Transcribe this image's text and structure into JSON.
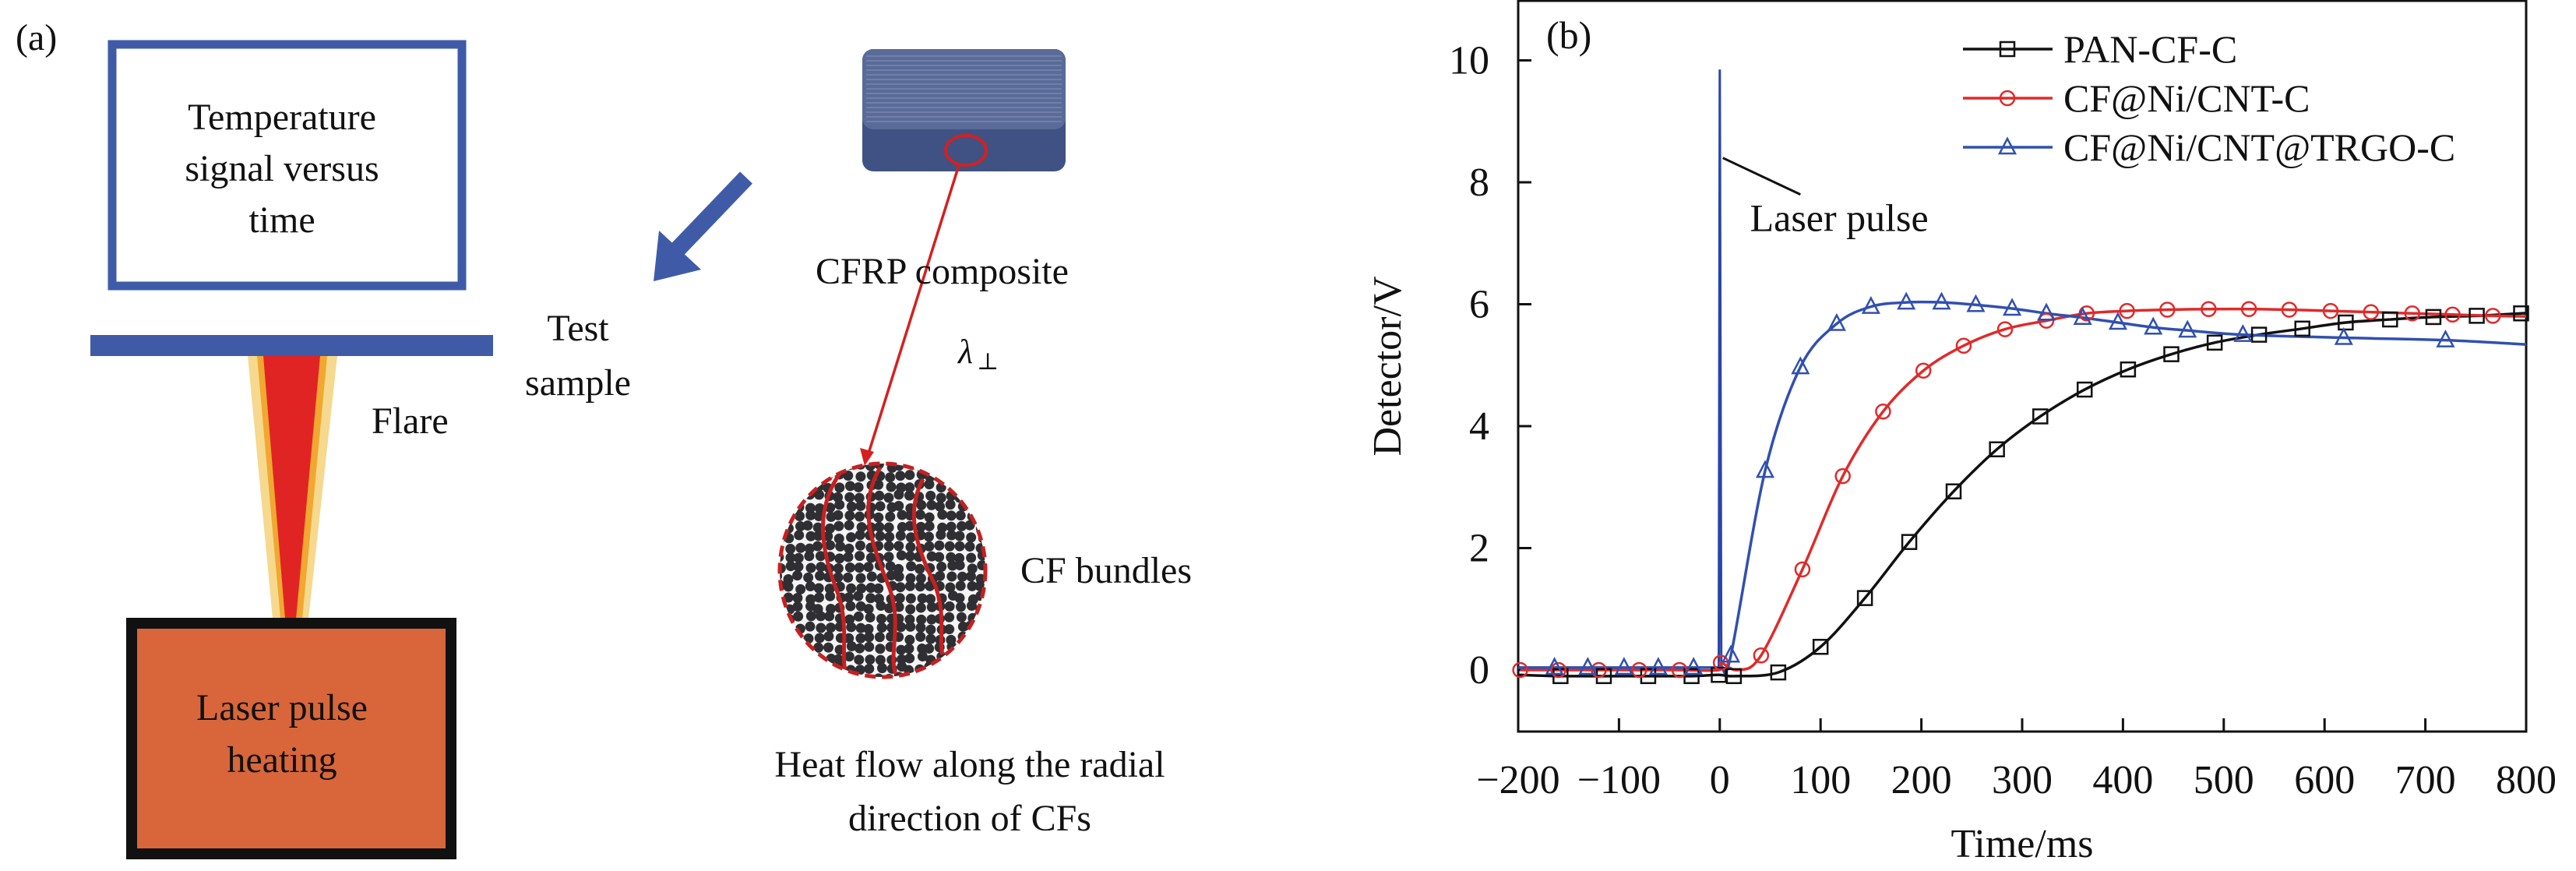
{
  "panel_a": {
    "label": "(a)",
    "monitor_text": [
      "Temperature",
      "signal versus",
      "time"
    ],
    "test_sample": [
      "Test",
      "sample"
    ],
    "flare": "Flare",
    "laser_text": [
      "Laser pulse",
      "heating"
    ],
    "cfrp": "CFRP composite",
    "lambda": "λ",
    "lambda_sub": "⊥",
    "cf_bundles": "CF bundles",
    "heat_flow": [
      "Heat flow along the radial",
      "direction of CFs"
    ],
    "colors": {
      "blue": "#3f5ba8",
      "laser": "#d8663a",
      "flare_red": "#e02424",
      "flare_yellow": "#f2c04a",
      "device": "#3f5283",
      "red": "#d42020"
    }
  },
  "chart_data": {
    "type": "line",
    "panel_label": "(b)",
    "xlabel": "Time/ms",
    "ylabel": "Detector/V",
    "xlim": [
      -200,
      800
    ],
    "ylim": [
      -1,
      11
    ],
    "xticks": [
      -200,
      -100,
      0,
      100,
      200,
      300,
      400,
      500,
      600,
      700,
      800
    ],
    "xtick_labels": [
      "−200",
      "−100",
      "0",
      "100",
      "200",
      "300",
      "400",
      "500",
      "600",
      "700",
      "800"
    ],
    "yticks": [
      0,
      2,
      4,
      6,
      8,
      10
    ],
    "ytick_labels": [
      "0",
      "2",
      "4",
      "6",
      "8",
      "10"
    ],
    "grid": false,
    "legend_position": "top-right",
    "annotation": {
      "text": "Laser pulse",
      "x": 30,
      "y": 7.2,
      "pointer_from": [
        3,
        8.4
      ],
      "pointer_to": [
        80,
        7.8
      ]
    },
    "laser_pulse": {
      "x": [
        -1,
        0,
        1.5
      ],
      "y": [
        0.04,
        9.85,
        0.05
      ],
      "color": "#2a45a8"
    },
    "series": [
      {
        "name": "PAN-CF-C",
        "color": "#111111",
        "marker": "square",
        "x": [
          -200,
          -158,
          -115,
          -71,
          -28,
          -1,
          14,
          58,
          100,
          144,
          188,
          232,
          275,
          318,
          362,
          405,
          448,
          491,
          535,
          578,
          621,
          665,
          708,
          751,
          795,
          800
        ],
        "y": [
          -0.08,
          -0.1,
          -0.1,
          -0.1,
          -0.1,
          -0.08,
          -0.1,
          -0.04,
          0.38,
          1.18,
          2.1,
          2.93,
          3.62,
          4.16,
          4.6,
          4.93,
          5.18,
          5.37,
          5.5,
          5.6,
          5.7,
          5.75,
          5.79,
          5.81,
          5.85,
          5.85
        ],
        "markers_from": 1,
        "markers_to": 24
      },
      {
        "name": "CF@Ni/CNT-C",
        "color": "#e02a2a",
        "marker": "circle",
        "x": [
          -198,
          -160,
          -120,
          -80,
          -40,
          -1,
          1,
          18,
          41,
          82,
          122,
          162,
          202,
          242,
          283,
          324,
          364,
          404,
          444,
          485,
          525,
          565,
          606,
          646,
          687,
          727,
          767,
          800
        ],
        "y": [
          0,
          0,
          0,
          0,
          0,
          0,
          0.12,
          0.0,
          0.24,
          1.65,
          3.18,
          4.24,
          4.91,
          5.32,
          5.59,
          5.73,
          5.85,
          5.89,
          5.91,
          5.92,
          5.92,
          5.91,
          5.89,
          5.87,
          5.85,
          5.83,
          5.81,
          5.8
        ],
        "markers_skip": [
          5,
          7,
          27
        ]
      },
      {
        "name": "CF@Ni/CNT@TRGO-C",
        "color": "#3050b0",
        "marker": "triangle",
        "x": [
          -200,
          -164,
          -131,
          -95,
          -61,
          -26,
          -1,
          2,
          11,
          45,
          80,
          116,
          150,
          185,
          220,
          254,
          290,
          324,
          360,
          395,
          430,
          464,
          519,
          619,
          720,
          800
        ],
        "y": [
          0.04,
          0.04,
          0.04,
          0.04,
          0.04,
          0.04,
          0.04,
          0.05,
          0.24,
          3.27,
          4.97,
          5.68,
          5.96,
          6.03,
          6.03,
          5.99,
          5.93,
          5.85,
          5.78,
          5.7,
          5.62,
          5.57,
          5.5,
          5.45,
          5.41,
          5.34
        ],
        "markers_skip": [
          0,
          6,
          7,
          25
        ]
      }
    ]
  }
}
